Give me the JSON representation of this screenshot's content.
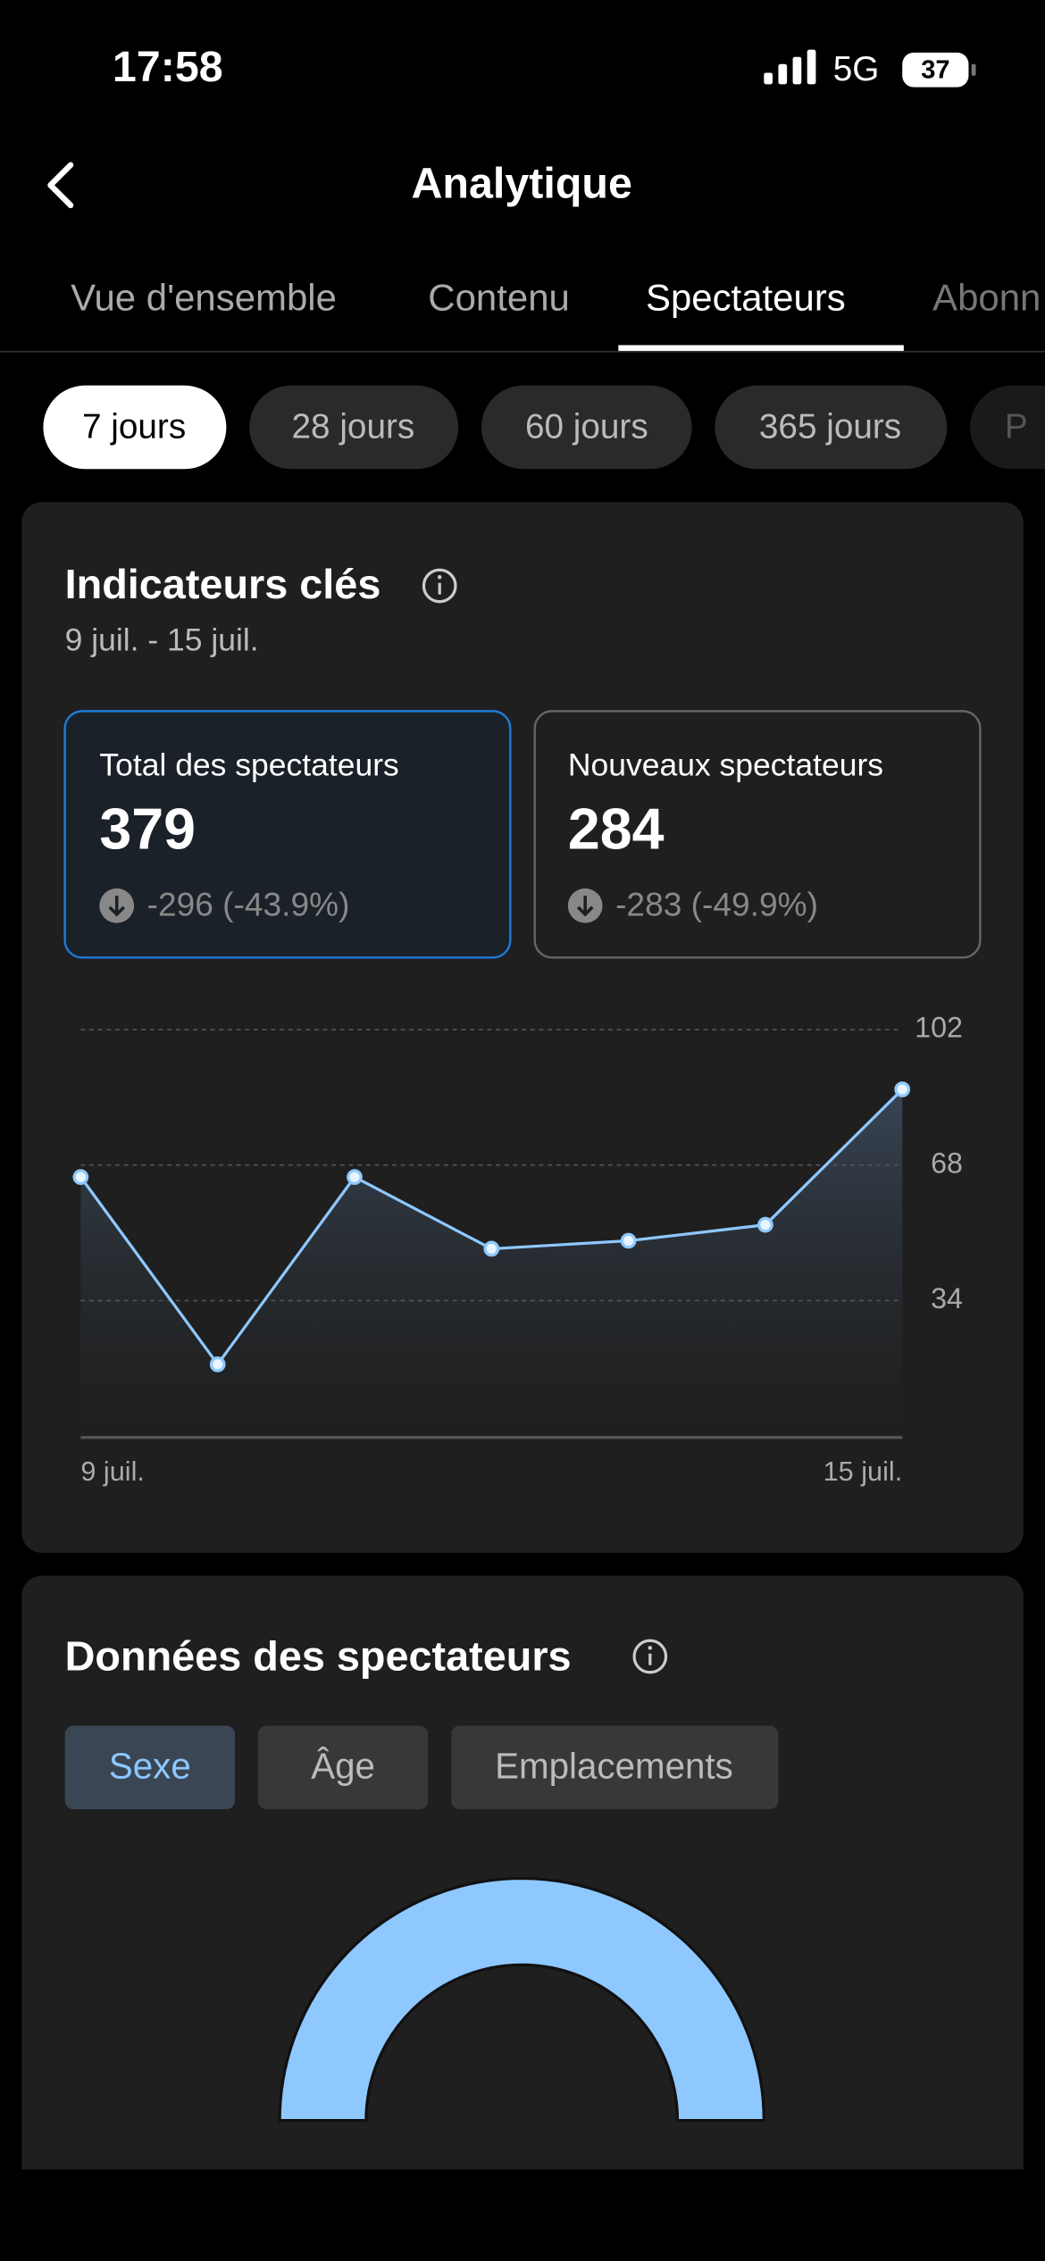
{
  "status_bar": {
    "time": "17:58",
    "network": "5G",
    "battery": "37"
  },
  "header": {
    "title": "Analytique"
  },
  "tabs": [
    "Vue d'ensemble",
    "Contenu",
    "Spectateurs",
    "Abonn"
  ],
  "periods": [
    "7 jours",
    "28 jours",
    "60 jours",
    "365 jours",
    "P"
  ],
  "key_metrics": {
    "title": "Indicateurs clés",
    "date_range": "9 juil. - 15 juil.",
    "cards": [
      {
        "label": "Total des spectateurs",
        "value": "379",
        "change": "-296 (-43.9%)"
      },
      {
        "label": "Nouveaux spectateurs",
        "value": "284",
        "change": "-283 (-49.9%)"
      }
    ]
  },
  "chart_data": {
    "type": "line",
    "categories": [
      "9 juil.",
      null,
      null,
      null,
      null,
      null,
      "15 juil."
    ],
    "values": [
      65,
      18,
      65,
      47,
      49,
      53,
      87
    ],
    "color": "#8ec8ff",
    "ylim": [
      0,
      102
    ],
    "yticks": [
      34,
      68,
      102
    ],
    "grid": true
  },
  "audience": {
    "title": "Données des spectateurs",
    "tabs": [
      "Sexe",
      "Âge",
      "Emplacements"
    ]
  }
}
